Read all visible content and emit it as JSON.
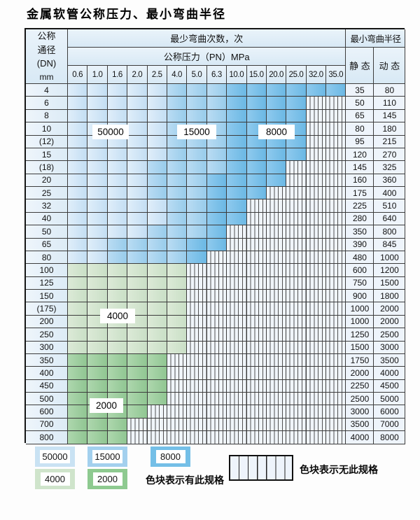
{
  "title": "金属软管公称压力、最小弯曲半径",
  "colors": {
    "cycles_50000": "#c9e2f3",
    "cycles_15000": "#a3d0ee",
    "cycles_8000": "#74bfe7",
    "cycles_4000": "#cfe4cb",
    "cycles_2000": "#8eca90",
    "no_spec_fill": "#f0f5fa",
    "grid_line": "#3c3c3c"
  },
  "table": {
    "dn_header": [
      "公称",
      "通径",
      "(DN)",
      "mm"
    ],
    "cycles_header": "最少弯曲次数，次",
    "pressure_header": "公称压力（PN）MPa",
    "radius_header": "最小弯曲半径",
    "static_label": "静 态",
    "dynamic_label": "动 态",
    "pressure_cols": [
      "0.6",
      "1.0",
      "1.6",
      "2.0",
      "2.5",
      "4.0",
      "5.0",
      "6.3",
      "10.0",
      "15.0",
      "20.0",
      "25.0",
      "32.0",
      "35.0"
    ],
    "rows": [
      {
        "dn": "4",
        "bands": [
          [
            "b1",
            5
          ],
          [
            "b2",
            3
          ],
          [
            "b3",
            6
          ]
        ],
        "static": "35",
        "dynamic": "80"
      },
      {
        "dn": "6",
        "bands": [
          [
            "b1",
            5
          ],
          [
            "b2",
            3
          ],
          [
            "b3",
            4
          ]
        ],
        "static": "50",
        "dynamic": "110"
      },
      {
        "dn": "8",
        "bands": [
          [
            "b1",
            5
          ],
          [
            "b2",
            3
          ],
          [
            "b3",
            4
          ]
        ],
        "static": "65",
        "dynamic": "145"
      },
      {
        "dn": "10",
        "bands": [
          [
            "b1",
            5
          ],
          [
            "b2",
            3
          ],
          [
            "b3",
            4
          ]
        ],
        "static": "80",
        "dynamic": "180"
      },
      {
        "dn": "(12)",
        "bands": [
          [
            "b1",
            5
          ],
          [
            "b2",
            3
          ],
          [
            "b3",
            4
          ]
        ],
        "static": "95",
        "dynamic": "215"
      },
      {
        "dn": "15",
        "bands": [
          [
            "b1",
            5
          ],
          [
            "b2",
            3
          ],
          [
            "b3",
            4
          ]
        ],
        "static": "120",
        "dynamic": "270"
      },
      {
        "dn": "(18)",
        "bands": [
          [
            "b1",
            4
          ],
          [
            "b2",
            4
          ],
          [
            "b3",
            3
          ]
        ],
        "static": "145",
        "dynamic": "325"
      },
      {
        "dn": "20",
        "bands": [
          [
            "b1",
            4
          ],
          [
            "b2",
            3
          ],
          [
            "b3",
            4
          ]
        ],
        "static": "160",
        "dynamic": "360"
      },
      {
        "dn": "25",
        "bands": [
          [
            "b1",
            4
          ],
          [
            "b2",
            3
          ],
          [
            "b3",
            3
          ]
        ],
        "static": "175",
        "dynamic": "400"
      },
      {
        "dn": "32",
        "bands": [
          [
            "b1",
            5
          ],
          [
            "b2",
            2
          ],
          [
            "b3",
            2
          ]
        ],
        "static": "225",
        "dynamic": "510"
      },
      {
        "dn": "40",
        "bands": [
          [
            "b1",
            5
          ],
          [
            "b2",
            2
          ],
          [
            "b3",
            2
          ]
        ],
        "static": "280",
        "dynamic": "640"
      },
      {
        "dn": "50",
        "bands": [
          [
            "b1",
            4
          ],
          [
            "b2",
            3
          ],
          [
            "b3",
            1
          ]
        ],
        "static": "350",
        "dynamic": "800"
      },
      {
        "dn": "65",
        "bands": [
          [
            "b1",
            2
          ],
          [
            "b2",
            4
          ],
          [
            "b3",
            2
          ]
        ],
        "static": "390",
        "dynamic": "845"
      },
      {
        "dn": "80",
        "bands": [
          [
            "b1",
            2
          ],
          [
            "b2",
            4
          ],
          [
            "b3",
            1
          ]
        ],
        "static": "480",
        "dynamic": "1000"
      },
      {
        "dn": "100",
        "bands": [
          [
            "g1",
            6
          ]
        ],
        "static": "600",
        "dynamic": "1200"
      },
      {
        "dn": "125",
        "bands": [
          [
            "g1",
            6
          ]
        ],
        "static": "750",
        "dynamic": "1500"
      },
      {
        "dn": "150",
        "bands": [
          [
            "g1",
            6
          ]
        ],
        "static": "900",
        "dynamic": "1800"
      },
      {
        "dn": "(175)",
        "bands": [
          [
            "g1",
            6
          ]
        ],
        "static": "1000",
        "dynamic": "2000"
      },
      {
        "dn": "200",
        "bands": [
          [
            "g1",
            6
          ]
        ],
        "static": "1000",
        "dynamic": "2000"
      },
      {
        "dn": "250",
        "bands": [
          [
            "g1",
            6
          ]
        ],
        "static": "1250",
        "dynamic": "2500"
      },
      {
        "dn": "300",
        "bands": [
          [
            "g1",
            6
          ]
        ],
        "static": "1500",
        "dynamic": "3000"
      },
      {
        "dn": "350",
        "bands": [
          [
            "g2",
            5
          ]
        ],
        "static": "1750",
        "dynamic": "3500"
      },
      {
        "dn": "400",
        "bands": [
          [
            "g2",
            5
          ]
        ],
        "static": "2000",
        "dynamic": "4000"
      },
      {
        "dn": "450",
        "bands": [
          [
            "g2",
            5
          ]
        ],
        "static": "2250",
        "dynamic": "4500"
      },
      {
        "dn": "500",
        "bands": [
          [
            "g2",
            5
          ]
        ],
        "static": "2500",
        "dynamic": "5000"
      },
      {
        "dn": "600",
        "bands": [
          [
            "g2",
            4
          ]
        ],
        "static": "3000",
        "dynamic": "6000"
      },
      {
        "dn": "700",
        "bands": [
          [
            "g2",
            3
          ]
        ],
        "static": "3500",
        "dynamic": "7000"
      },
      {
        "dn": "800",
        "bands": [
          [
            "g2",
            3
          ]
        ],
        "static": "4000",
        "dynamic": "8000"
      }
    ]
  },
  "overlays": [
    {
      "text": "50000"
    },
    {
      "text": "15000"
    },
    {
      "text": "8000"
    },
    {
      "text": "4000"
    },
    {
      "text": "2000"
    }
  ],
  "legend": {
    "swatches": [
      {
        "label": "50000"
      },
      {
        "label": "15000"
      },
      {
        "label": "8000"
      },
      {
        "label": "4000"
      },
      {
        "label": "2000"
      }
    ],
    "has_spec_text": "色块表示有此规格",
    "no_spec_text": "色块表示无此规格"
  }
}
